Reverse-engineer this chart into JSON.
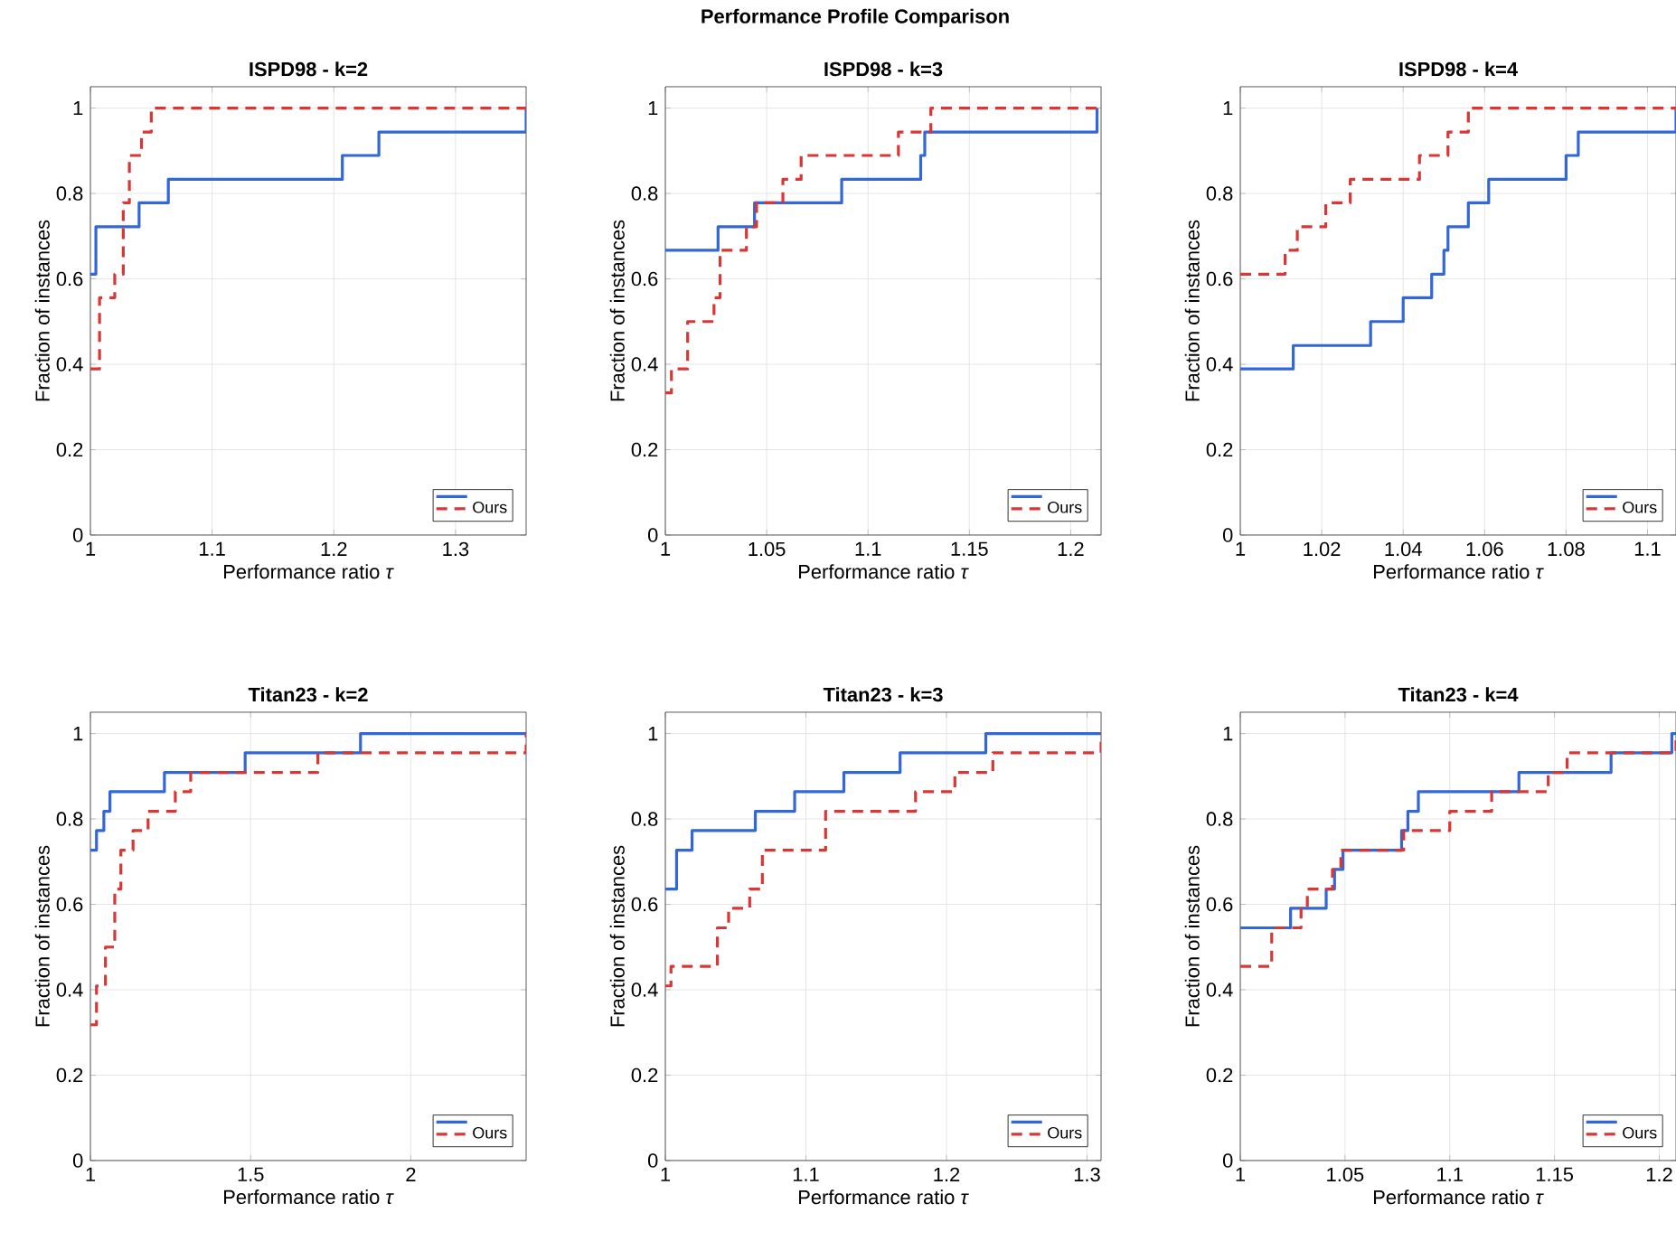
{
  "chart_data": [
    {
      "type": "step",
      "title": "ISPD98 - k=2",
      "xlabel": "Performance ratio *τ*",
      "ylabel": "Fraction of instances",
      "annotations": [
        "Performance Profile Comparison"
      ],
      "xlim": [
        1,
        1.358
      ],
      "ylim": [
        0,
        1.05
      ],
      "xticks": [
        1,
        1.1,
        1.2,
        1.3
      ],
      "yticks": [
        0,
        0.2,
        0.4,
        0.6,
        0.8,
        1
      ],
      "grid": true,
      "legend": "bottom right",
      "series": [
        {
          "color": "#3366d6",
          "line_style": "solid",
          "x": [
            1,
            1.0045,
            1.04,
            1.064,
            1.207,
            1.237,
            1.358
          ],
          "values": [
            0.611,
            0.722,
            0.778,
            0.833,
            0.889,
            0.944,
            1.0
          ]
        },
        {
          "name": "Ours",
          "color": "#d93636",
          "line_style": "dashed",
          "x": [
            1,
            1.0075,
            1.02,
            1.027,
            1.032,
            1.042,
            1.05,
            1.358
          ],
          "values": [
            0.389,
            0.556,
            0.611,
            0.778,
            0.889,
            0.944,
            1.0,
            1.0
          ]
        }
      ]
    },
    {
      "type": "step",
      "title": "ISPD98 - k=3",
      "xlabel": "Performance ratio *τ*",
      "ylabel": "Fraction of instances",
      "xlim": [
        1,
        1.215
      ],
      "ylim": [
        0,
        1.05
      ],
      "xticks": [
        1,
        1.05,
        1.1,
        1.15,
        1.2
      ],
      "yticks": [
        0,
        0.2,
        0.4,
        0.6,
        0.8,
        1
      ],
      "grid": true,
      "legend": "bottom right",
      "series": [
        {
          "color": "#3366d6",
          "line_style": "solid",
          "x": [
            1,
            1.026,
            1.044,
            1.087,
            1.126,
            1.128,
            1.213
          ],
          "values": [
            0.667,
            0.722,
            0.778,
            0.833,
            0.889,
            0.944,
            1.0
          ]
        },
        {
          "name": "Ours",
          "color": "#d93636",
          "line_style": "dashed",
          "x": [
            1,
            1.003,
            1.011,
            1.024,
            1.027,
            1.04,
            1.045,
            1.058,
            1.067,
            1.115,
            1.131,
            1.215
          ],
          "values": [
            0.333,
            0.389,
            0.5,
            0.556,
            0.667,
            0.722,
            0.778,
            0.833,
            0.889,
            0.944,
            1.0,
            1.0
          ]
        }
      ]
    },
    {
      "type": "step",
      "title": "ISPD98 - k=4",
      "xlabel": "Performance ratio *τ*",
      "ylabel": "Fraction of instances",
      "xlim": [
        1,
        1.107
      ],
      "ylim": [
        0,
        1.05
      ],
      "xticks": [
        1,
        1.02,
        1.04,
        1.06,
        1.08,
        1.1
      ],
      "yticks": [
        0,
        0.2,
        0.4,
        0.6,
        0.8,
        1
      ],
      "grid": true,
      "legend": "bottom right",
      "series": [
        {
          "color": "#3366d6",
          "line_style": "solid",
          "x": [
            1,
            1.013,
            1.032,
            1.04,
            1.047,
            1.05,
            1.051,
            1.056,
            1.061,
            1.08,
            1.083,
            1.107
          ],
          "values": [
            0.389,
            0.444,
            0.5,
            0.556,
            0.611,
            0.667,
            0.722,
            0.778,
            0.833,
            0.889,
            0.944,
            1.0
          ]
        },
        {
          "name": "Ours",
          "color": "#d93636",
          "line_style": "dashed",
          "x": [
            1,
            1.011,
            1.014,
            1.021,
            1.027,
            1.044,
            1.051,
            1.056,
            1.107
          ],
          "values": [
            0.611,
            0.667,
            0.722,
            0.778,
            0.833,
            0.889,
            0.944,
            1.0,
            1.0
          ]
        }
      ]
    },
    {
      "type": "step",
      "title": "Titan23 - k=2",
      "xlabel": "Performance ratio *τ*",
      "ylabel": "Fraction of instances",
      "xlim": [
        1,
        2.36
      ],
      "ylim": [
        0,
        1.05
      ],
      "xticks": [
        1,
        1.5,
        2
      ],
      "yticks": [
        0,
        0.2,
        0.4,
        0.6,
        0.8,
        1
      ],
      "grid": true,
      "legend": "bottom right",
      "series": [
        {
          "color": "#3366d6",
          "line_style": "solid",
          "x": [
            1,
            1.019,
            1.042,
            1.061,
            1.231,
            1.483,
            1.843,
            2.36
          ],
          "values": [
            0.727,
            0.773,
            0.818,
            0.864,
            0.909,
            0.955,
            1.0,
            1.0
          ]
        },
        {
          "name": "Ours",
          "color": "#d93636",
          "line_style": "dashed",
          "x": [
            1,
            1.019,
            1.047,
            1.076,
            1.095,
            1.133,
            1.18,
            1.265,
            1.313,
            1.71,
            2.36
          ],
          "values": [
            0.318,
            0.409,
            0.5,
            0.636,
            0.727,
            0.773,
            0.818,
            0.864,
            0.909,
            0.955,
            1.0
          ]
        }
      ]
    },
    {
      "type": "step",
      "title": "Titan23 - k=3",
      "xlabel": "Performance ratio *τ*",
      "ylabel": "Fraction of instances",
      "xlim": [
        1,
        1.31
      ],
      "ylim": [
        0,
        1.05
      ],
      "xticks": [
        1,
        1.1,
        1.2,
        1.3
      ],
      "yticks": [
        0,
        0.2,
        0.4,
        0.6,
        0.8,
        1
      ],
      "grid": true,
      "legend": "bottom right",
      "series": [
        {
          "color": "#3366d6",
          "line_style": "solid",
          "x": [
            1,
            1.008,
            1.019,
            1.064,
            1.092,
            1.127,
            1.167,
            1.228,
            1.31
          ],
          "values": [
            0.636,
            0.727,
            0.773,
            0.818,
            0.864,
            0.909,
            0.955,
            1.0,
            1.0
          ]
        },
        {
          "name": "Ours",
          "color": "#d93636",
          "line_style": "dashed",
          "x": [
            1,
            1.004,
            1.037,
            1.045,
            1.06,
            1.069,
            1.114,
            1.178,
            1.206,
            1.233,
            1.31
          ],
          "values": [
            0.409,
            0.455,
            0.545,
            0.591,
            0.636,
            0.727,
            0.818,
            0.864,
            0.909,
            0.955,
            1.0
          ]
        }
      ]
    },
    {
      "type": "step",
      "title": "Titan23 - k=4",
      "xlabel": "Performance ratio *τ*",
      "ylabel": "Fraction of instances",
      "xlim": [
        1,
        1.208
      ],
      "ylim": [
        0,
        1.05
      ],
      "xticks": [
        1,
        1.05,
        1.1,
        1.15,
        1.2
      ],
      "yticks": [
        0,
        0.2,
        0.4,
        0.6,
        0.8,
        1
      ],
      "grid": true,
      "legend": "bottom right",
      "series": [
        {
          "color": "#3366d6",
          "line_style": "solid",
          "x": [
            1,
            1.024,
            1.041,
            1.045,
            1.049,
            1.077,
            1.08,
            1.085,
            1.133,
            1.177,
            1.206,
            1.208
          ],
          "values": [
            0.545,
            0.591,
            0.636,
            0.682,
            0.727,
            0.773,
            0.818,
            0.864,
            0.909,
            0.955,
            1.0,
            1.0
          ]
        },
        {
          "name": "Ours",
          "color": "#d93636",
          "line_style": "dashed",
          "x": [
            1,
            1.015,
            1.029,
            1.032,
            1.044,
            1.048,
            1.078,
            1.1,
            1.12,
            1.147,
            1.156,
            1.208
          ],
          "values": [
            0.455,
            0.545,
            0.591,
            0.636,
            0.682,
            0.727,
            0.773,
            0.818,
            0.864,
            0.909,
            0.955,
            1.0
          ]
        }
      ]
    }
  ]
}
